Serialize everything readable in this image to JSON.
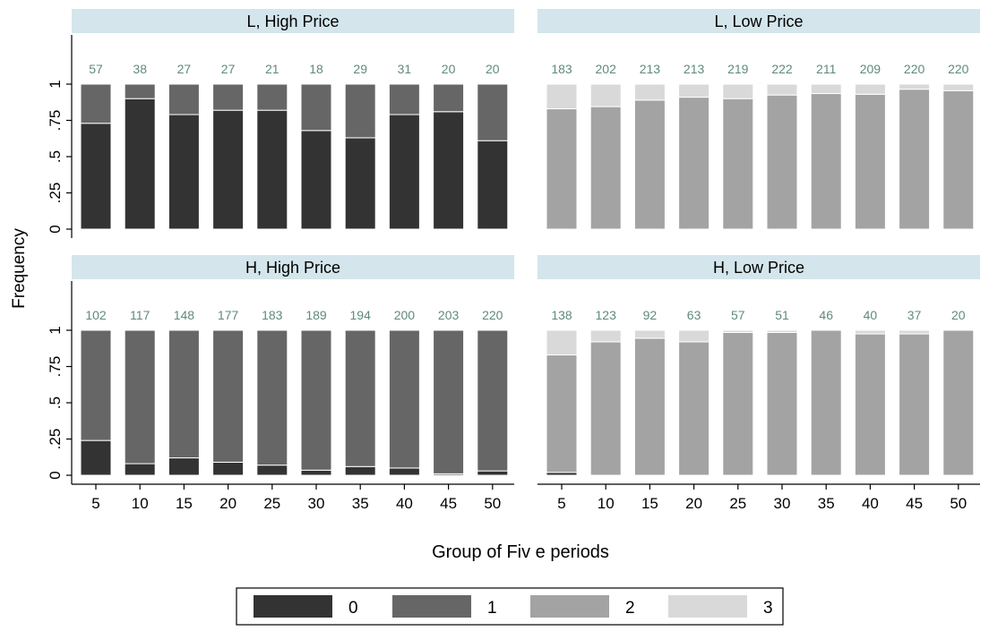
{
  "chart_data": {
    "type": "bar",
    "stacked": true,
    "ylabel": "Frequency",
    "xlabel": "Group of Fiv e periods",
    "ylim": [
      0,
      1
    ],
    "y_ticks": [
      {
        "value": 0,
        "label": "0"
      },
      {
        "value": 0.25,
        "label": ".25"
      },
      {
        "value": 0.5,
        "label": ".5"
      },
      {
        "value": 0.75,
        "label": ".75"
      },
      {
        "value": 1,
        "label": "1"
      }
    ],
    "categories": [
      "5",
      "10",
      "15",
      "20",
      "25",
      "30",
      "35",
      "40",
      "45",
      "50"
    ],
    "legend": {
      "position": "bottom",
      "entries": [
        {
          "label": "0",
          "color": "#333333"
        },
        {
          "label": "1",
          "color": "#666666"
        },
        {
          "label": "2",
          "color": "#a3a3a3"
        },
        {
          "label": "3",
          "color": "#d9d9d9"
        }
      ]
    },
    "colors": {
      "strip": "#d4e5ec",
      "count_label": "#5f8a7b",
      "axis": "#000000"
    },
    "panels": [
      {
        "title": "L, High Price",
        "counts": [
          "57",
          "38",
          "27",
          "27",
          "21",
          "18",
          "29",
          "31",
          "20",
          "20"
        ],
        "series": [
          {
            "name": "0",
            "values": [
              0.73,
              0.9,
              0.79,
              0.82,
              0.82,
              0.68,
              0.63,
              0.79,
              0.81,
              0.61
            ]
          },
          {
            "name": "1",
            "values": [
              0.27,
              0.1,
              0.21,
              0.18,
              0.18,
              0.32,
              0.37,
              0.21,
              0.19,
              0.39
            ]
          },
          {
            "name": "2",
            "values": [
              0,
              0,
              0,
              0,
              0,
              0,
              0,
              0,
              0,
              0
            ]
          },
          {
            "name": "3",
            "values": [
              0,
              0,
              0,
              0,
              0,
              0,
              0,
              0,
              0,
              0
            ]
          }
        ]
      },
      {
        "title": "L, Low Price",
        "counts": [
          "183",
          "202",
          "213",
          "213",
          "219",
          "222",
          "211",
          "209",
          "220",
          "220"
        ],
        "series": [
          {
            "name": "0",
            "values": [
              0,
              0,
              0,
              0,
              0,
              0,
              0,
              0,
              0,
              0
            ]
          },
          {
            "name": "1",
            "values": [
              0,
              0,
              0,
              0,
              0,
              0,
              0,
              0,
              0,
              0
            ]
          },
          {
            "name": "2",
            "values": [
              0.83,
              0.845,
              0.89,
              0.91,
              0.9,
              0.925,
              0.935,
              0.93,
              0.965,
              0.955
            ]
          },
          {
            "name": "3",
            "values": [
              0.17,
              0.155,
              0.11,
              0.09,
              0.1,
              0.075,
              0.065,
              0.07,
              0.035,
              0.045
            ]
          }
        ]
      },
      {
        "title": "H, High Price",
        "counts": [
          "102",
          "117",
          "148",
          "177",
          "183",
          "189",
          "194",
          "200",
          "203",
          "220"
        ],
        "series": [
          {
            "name": "0",
            "values": [
              0.24,
              0.08,
              0.12,
              0.09,
              0.07,
              0.035,
              0.06,
              0.05,
              0.01,
              0.03
            ]
          },
          {
            "name": "1",
            "values": [
              0.76,
              0.92,
              0.88,
              0.91,
              0.93,
              0.965,
              0.94,
              0.95,
              0.99,
              0.97
            ]
          },
          {
            "name": "2",
            "values": [
              0,
              0,
              0,
              0,
              0,
              0,
              0,
              0,
              0,
              0
            ]
          },
          {
            "name": "3",
            "values": [
              0,
              0,
              0,
              0,
              0,
              0,
              0,
              0,
              0,
              0
            ]
          }
        ]
      },
      {
        "title": "H, Low Price",
        "counts": [
          "138",
          "123",
          "92",
          "63",
          "57",
          "51",
          "46",
          "40",
          "37",
          "20"
        ],
        "series": [
          {
            "name": "0",
            "values": [
              0.02,
              0,
              0,
              0,
              0,
              0,
              0,
              0,
              0,
              0
            ]
          },
          {
            "name": "1",
            "values": [
              0,
              0,
              0,
              0,
              0,
              0,
              0,
              0,
              0,
              0
            ]
          },
          {
            "name": "2",
            "values": [
              0.81,
              0.92,
              0.945,
              0.92,
              0.985,
              0.985,
              1.0,
              0.975,
              0.975,
              1.0
            ]
          },
          {
            "name": "3",
            "values": [
              0.17,
              0.08,
              0.055,
              0.08,
              0.015,
              0.015,
              0,
              0.025,
              0.025,
              0
            ]
          }
        ]
      }
    ]
  }
}
